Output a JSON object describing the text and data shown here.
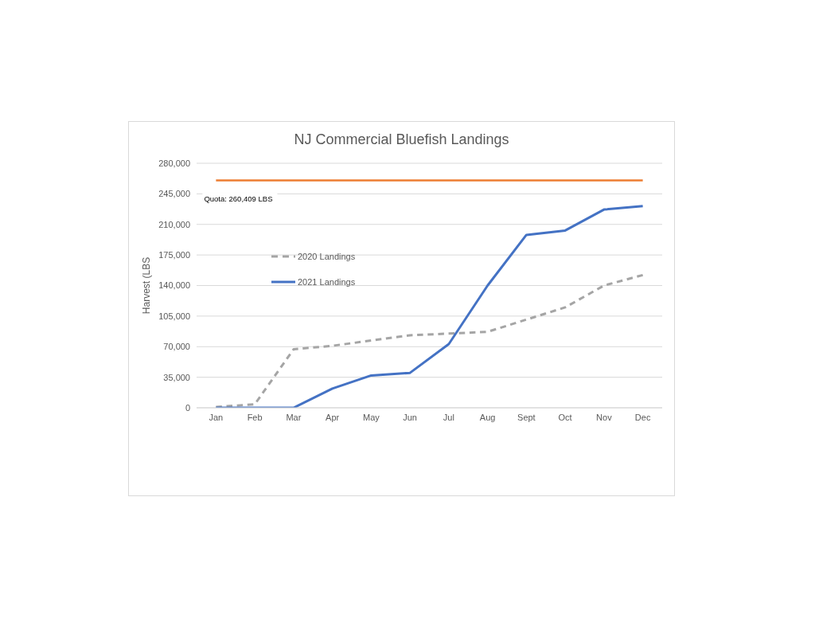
{
  "chart_data": {
    "type": "line",
    "title": "NJ Commercial Bluefish Landings",
    "ylabel": "Harvest (LBS",
    "categories": [
      "Jan",
      "Feb",
      "Mar",
      "Apr",
      "May",
      "Jun",
      "Jul",
      "Aug",
      "Sept",
      "Oct",
      "Nov",
      "Dec"
    ],
    "series": [
      {
        "name": "2020 Landings",
        "color": "#a5a5a5",
        "line_style": "dashed",
        "values": [
          1000,
          4000,
          67000,
          71000,
          77000,
          83000,
          85000,
          87000,
          101000,
          115000,
          140000,
          152000
        ]
      },
      {
        "name": "2021 Landings",
        "color": "#4472c4",
        "line_style": "solid",
        "values": [
          0,
          0,
          0,
          22000,
          37000,
          40000,
          73000,
          140000,
          198000,
          203000,
          227000,
          231000
        ]
      }
    ],
    "ylim": [
      0,
      280000
    ],
    "yticks": [
      0,
      {
        "value": 35000,
        "label": "35,000"
      },
      {
        "value": 70000,
        "label": "70,000"
      },
      {
        "value": 105000,
        "label": "105,000"
      },
      {
        "value": 140000,
        "label": "140,000"
      },
      {
        "value": 175000,
        "label": "175,000"
      },
      {
        "value": 210000,
        "label": "210,000"
      },
      {
        "value": 245000,
        "label": "245,000"
      },
      {
        "value": 280000,
        "label": "280,000"
      }
    ],
    "grid": "y",
    "legend": "top left",
    "marker": "none",
    "ref_lines": [
      {
        "axis": "y",
        "value": 260409,
        "label": "Quota: 260,409 LBS",
        "color": "#ed7d31"
      }
    ]
  }
}
